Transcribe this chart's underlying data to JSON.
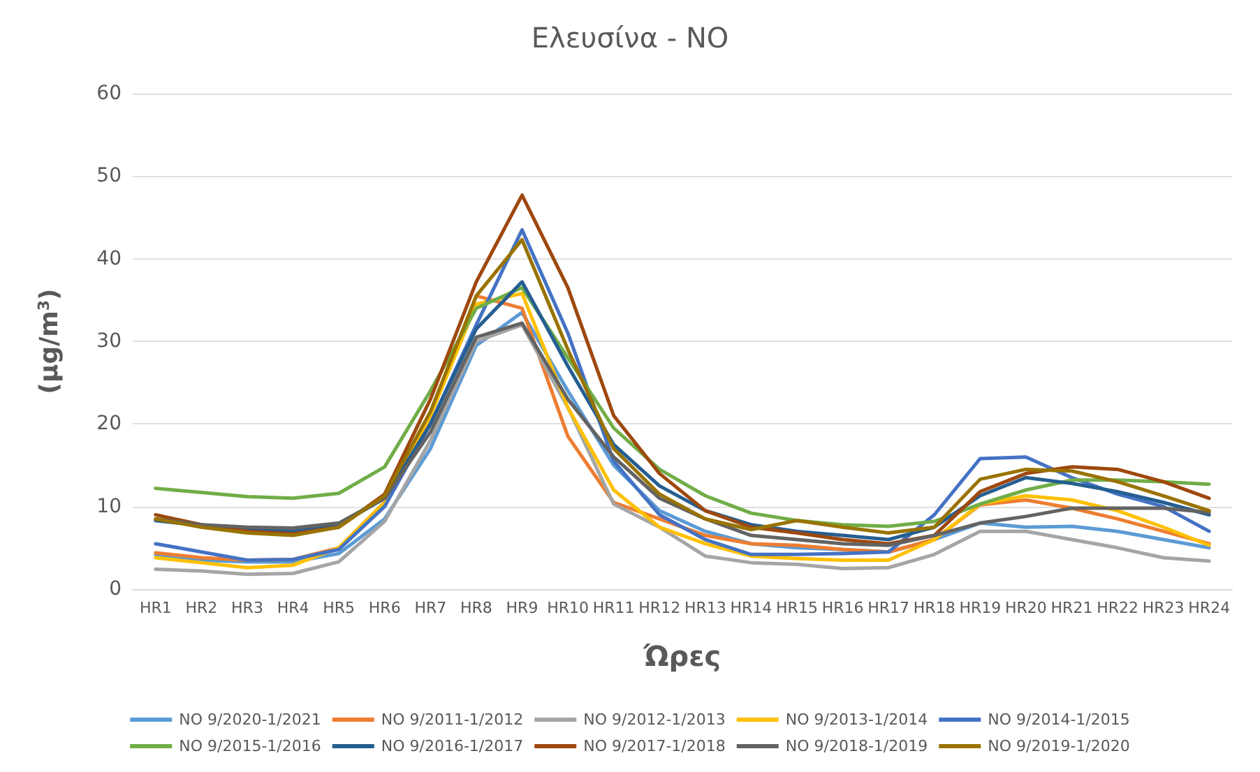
{
  "chart_data": {
    "type": "line",
    "title": "Ελευσίνα - NO",
    "xlabel": "Ώρες",
    "ylabel": "(μg/m$^{3}$)",
    "categories": [
      "HR1",
      "HR2",
      "HR3",
      "HR4",
      "HR5",
      "HR6",
      "HR7",
      "HR8",
      "HR9",
      "HR10",
      "HR11",
      "HR12",
      "HR13",
      "HR14",
      "HR15",
      "HR16",
      "HR17",
      "HR18",
      "HR19",
      "HR20",
      "HR21",
      "HR22",
      "HR23",
      "HR24"
    ],
    "ylim": [
      0,
      60
    ],
    "yticks": [
      0,
      10,
      20,
      30,
      40,
      50,
      60
    ],
    "grid": "y",
    "legend": "bottom",
    "marker": "none",
    "line_style": "solid",
    "series": [
      {
        "name": "NO 9/2020-1/2021",
        "color": "#5b9bd5",
        "values": [
          4.2,
          3.5,
          3.3,
          3.3,
          4.3,
          8.5,
          17,
          29.5,
          33.5,
          24,
          15,
          9.5,
          7,
          5.5,
          5,
          4.8,
          4.5,
          6,
          8,
          7.5,
          7.6,
          7,
          6,
          5
        ]
      },
      {
        "name": "NO 9/2011-1/2012",
        "color": "#ed7d31",
        "values": [
          4.4,
          3.8,
          3.5,
          3.6,
          5,
          10.5,
          21,
          35.5,
          34,
          18.5,
          10.5,
          8.5,
          6.5,
          5.5,
          5.3,
          4.8,
          4.5,
          6,
          10.2,
          10.8,
          9.8,
          8.5,
          7,
          5.5
        ]
      },
      {
        "name": "NO 9/2012-1/2013",
        "color": "#a5a5a5",
        "values": [
          2.4,
          2.2,
          1.8,
          1.9,
          3.3,
          8.2,
          18,
          30,
          32,
          22,
          10.3,
          7.5,
          4,
          3.2,
          3,
          2.5,
          2.6,
          4.2,
          7,
          7,
          6,
          5,
          3.8,
          3.4
        ]
      },
      {
        "name": "NO 9/2013-1/2014",
        "color": "#ffc000",
        "values": [
          3.8,
          3.2,
          2.6,
          2.9,
          5,
          10.5,
          21,
          34.5,
          35.8,
          22,
          12,
          7.5,
          5.5,
          4,
          3.7,
          3.5,
          3.5,
          6,
          10.3,
          11.3,
          10.8,
          9.5,
          7.5,
          5.3
        ]
      },
      {
        "name": "NO 9/2014-1/2015",
        "color": "#4472c4",
        "values": [
          5.5,
          4.5,
          3.5,
          3.6,
          4.8,
          10,
          20,
          32,
          43.5,
          31,
          15.5,
          9,
          6,
          4.2,
          4.2,
          4.3,
          4.5,
          9,
          15.8,
          16,
          13.5,
          11.5,
          10,
          7
        ]
      },
      {
        "name": "NO 9/2015-1/2016",
        "color": "#70ad47",
        "values": [
          12.2,
          11.7,
          11.2,
          11,
          11.6,
          14.8,
          24,
          34,
          36.5,
          28,
          19.5,
          14.5,
          11.3,
          9.2,
          8.3,
          7.8,
          7.6,
          8.2,
          10.3,
          12,
          13.2,
          13.2,
          13,
          12.7
        ]
      },
      {
        "name": "NO 9/2016-1/2017",
        "color": "#255e91",
        "values": [
          8.3,
          7.7,
          7.2,
          7,
          7.8,
          11,
          20,
          31.5,
          37.2,
          27,
          17.5,
          12.5,
          9.5,
          7.8,
          7,
          6.5,
          6,
          7.5,
          11.3,
          13.5,
          12.8,
          11.8,
          10.5,
          9
        ]
      },
      {
        "name": "NO 9/2017-1/2018",
        "color": "#9e480e",
        "values": [
          9,
          7.8,
          7,
          6.7,
          7.5,
          11.5,
          23,
          37.2,
          47.7,
          36.5,
          21,
          14,
          9.5,
          7.5,
          6.8,
          6,
          5.5,
          6.5,
          11.8,
          14,
          14.8,
          14.5,
          13,
          11
        ]
      },
      {
        "name": "NO 9/2018-1/2019",
        "color": "#636363",
        "values": [
          8.5,
          7.8,
          7.5,
          7.4,
          8,
          11,
          19,
          30.5,
          32.2,
          23,
          16,
          11,
          8.5,
          6.5,
          6,
          5.5,
          5.3,
          6.5,
          8,
          8.8,
          9.8,
          9.8,
          9.8,
          9.3
        ]
      },
      {
        "name": "NO 9/2019-1/2020",
        "color": "#997300",
        "values": [
          8.5,
          7.5,
          6.8,
          6.5,
          7.5,
          11.3,
          21.5,
          35.5,
          42.3,
          29,
          17,
          11.5,
          8.5,
          7.2,
          8.3,
          7.5,
          6.8,
          7.5,
          13.3,
          14.5,
          14.3,
          13,
          11.3,
          9.5
        ]
      }
    ]
  }
}
